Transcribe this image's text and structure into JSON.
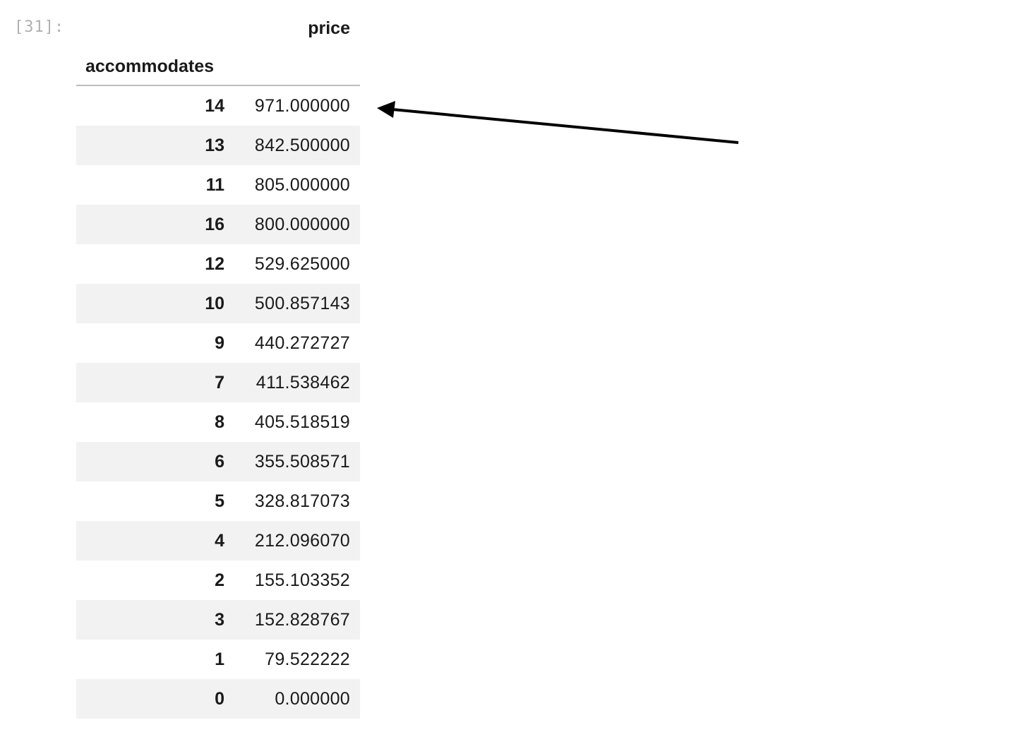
{
  "cell": {
    "prompt": "[31]:"
  },
  "dataframe": {
    "column_header": "price",
    "index_name": "accommodates",
    "rows": [
      {
        "index": "14",
        "price": "971.000000"
      },
      {
        "index": "13",
        "price": "842.500000"
      },
      {
        "index": "11",
        "price": "805.000000"
      },
      {
        "index": "16",
        "price": "800.000000"
      },
      {
        "index": "12",
        "price": "529.625000"
      },
      {
        "index": "10",
        "price": "500.857143"
      },
      {
        "index": "9",
        "price": "440.272727"
      },
      {
        "index": "7",
        "price": "411.538462"
      },
      {
        "index": "8",
        "price": "405.518519"
      },
      {
        "index": "6",
        "price": "355.508571"
      },
      {
        "index": "5",
        "price": "328.817073"
      },
      {
        "index": "4",
        "price": "212.096070"
      },
      {
        "index": "2",
        "price": "155.103352"
      },
      {
        "index": "3",
        "price": "152.828767"
      },
      {
        "index": "1",
        "price": "79.522222"
      },
      {
        "index": "0",
        "price": "0.000000"
      }
    ]
  },
  "annotation": {
    "arrow_color": "#000000",
    "points_to": "first row"
  },
  "colors": {
    "stripe": "#f2f2f2",
    "prompt": "#b0b0b0"
  }
}
